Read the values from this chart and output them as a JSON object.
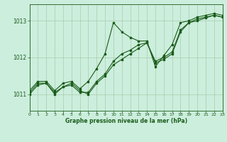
{
  "title": "Graphe pression niveau de la mer (hPa)",
  "bg_color": "#cceedd",
  "grid_color": "#aaccaa",
  "line_color": "#1a5c1a",
  "xlim": [
    0,
    23
  ],
  "ylim": [
    1010.55,
    1013.45
  ],
  "yticks": [
    1011,
    1012,
    1013
  ],
  "xticks": [
    0,
    1,
    2,
    3,
    4,
    5,
    6,
    7,
    8,
    9,
    10,
    11,
    12,
    13,
    14,
    15,
    16,
    17,
    18,
    19,
    20,
    21,
    22,
    23
  ],
  "line1_x": [
    0,
    1,
    2,
    3,
    4,
    5,
    6,
    7,
    8,
    9,
    10,
    11,
    12,
    13,
    14,
    15,
    16,
    17,
    18,
    19,
    20,
    21,
    22,
    23
  ],
  "line1_y": [
    1011.05,
    1011.3,
    1011.3,
    1011.05,
    1011.2,
    1011.25,
    1011.05,
    1011.05,
    1011.35,
    1011.55,
    1011.9,
    1012.1,
    1012.2,
    1012.35,
    1012.4,
    1011.9,
    1012.0,
    1012.15,
    1012.75,
    1012.95,
    1013.05,
    1013.1,
    1013.15,
    1013.1
  ],
  "line2_x": [
    0,
    1,
    2,
    3,
    4,
    5,
    6,
    7,
    8,
    9,
    10,
    11,
    12,
    13,
    14,
    15,
    16,
    17,
    18,
    19,
    20,
    21,
    22,
    23
  ],
  "line2_y": [
    1011.1,
    1011.35,
    1011.35,
    1011.1,
    1011.3,
    1011.35,
    1011.15,
    1011.35,
    1011.7,
    1012.1,
    1012.95,
    1012.7,
    1012.55,
    1012.45,
    1012.45,
    1011.75,
    1012.05,
    1012.35,
    1012.95,
    1013.0,
    1013.1,
    1013.15,
    1013.2,
    1013.15
  ],
  "line3_x": [
    0,
    1,
    2,
    3,
    4,
    5,
    6,
    7,
    8,
    9,
    10,
    11,
    12,
    13,
    14,
    15,
    16,
    17,
    18,
    19,
    20,
    21,
    22,
    23
  ],
  "line3_y": [
    1011.0,
    1011.25,
    1011.3,
    1011.0,
    1011.2,
    1011.3,
    1011.1,
    1011.0,
    1011.3,
    1011.5,
    1011.8,
    1011.95,
    1012.1,
    1012.25,
    1012.4,
    1011.85,
    1011.95,
    1012.1,
    1012.7,
    1012.95,
    1013.0,
    1013.08,
    1013.15,
    1013.1
  ]
}
